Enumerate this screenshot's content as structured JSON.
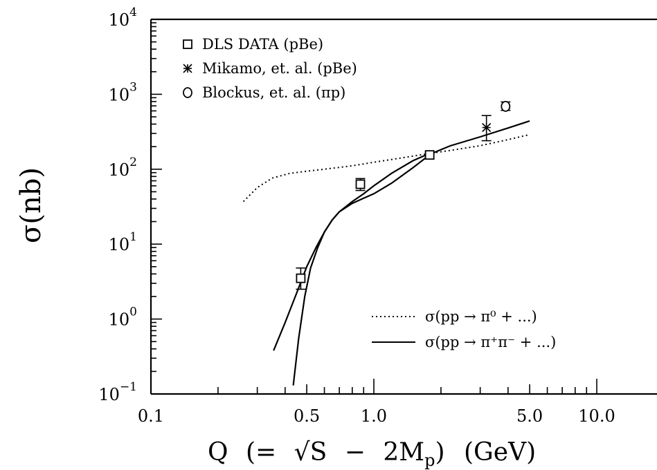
{
  "chart_data": {
    "type": "line",
    "title": "",
    "ylabel": "σ(nb)",
    "xlabel_parts": {
      "q": "Q",
      "open": "(=",
      "sqrt": "√S",
      "minus": "−",
      "two_m": "2M",
      "sub_p": "p",
      "close": ")",
      "unit": "(GeV)"
    },
    "x_scale": "log",
    "y_scale": "log",
    "xlim": [
      0.1,
      20.0
    ],
    "ylim": [
      0.1,
      10000
    ],
    "x_ticks": [
      {
        "value": 0.1,
        "label": "0.1"
      },
      {
        "value": 0.5,
        "label": "0.5"
      },
      {
        "value": 1.0,
        "label": "1.0"
      },
      {
        "value": 5.0,
        "label": "5.0"
      },
      {
        "value": 10.0,
        "label": "10.0"
      }
    ],
    "y_ticks": [
      {
        "value": 0.1,
        "base": "10",
        "exp": "−1"
      },
      {
        "value": 1,
        "base": "10",
        "exp": "0"
      },
      {
        "value": 10,
        "base": "10",
        "exp": "1"
      },
      {
        "value": 100,
        "base": "10",
        "exp": "2"
      },
      {
        "value": 1000,
        "base": "10",
        "exp": "3"
      },
      {
        "value": 10000,
        "base": "10",
        "exp": "4"
      }
    ],
    "markers": [
      {
        "name": "DLS DATA (pBe)",
        "marker": "square",
        "points": [
          {
            "x": 0.47,
            "y": 3.5,
            "y_low": 2.5,
            "y_high": 4.8
          },
          {
            "x": 0.87,
            "y": 63,
            "y_low": 52,
            "y_high": 75
          },
          {
            "x": 1.78,
            "y": 155,
            "y_low": 140,
            "y_high": 170
          }
        ]
      },
      {
        "name": "Mikamo, et. al. (pBe)",
        "marker": "star",
        "points": [
          {
            "x": 3.2,
            "y": 360,
            "y_low": 240,
            "y_high": 520
          }
        ]
      },
      {
        "name": "Blockus, et. al. (πp)",
        "marker": "circle",
        "points": [
          {
            "x": 3.9,
            "y": 690,
            "y_low": 610,
            "y_high": 790
          }
        ]
      }
    ],
    "curves": [
      {
        "name": "σ(pp → π⁰ + ...)",
        "style": "dotted",
        "x": [
          0.26,
          0.3,
          0.35,
          0.42,
          0.5,
          0.6,
          0.8,
          1.0,
          1.3,
          1.7,
          2.2,
          3.0,
          4.0,
          5.0
        ],
        "y": [
          37,
          57,
          76,
          88,
          94,
          100,
          111,
          124,
          140,
          159,
          178,
          206,
          248,
          290
        ]
      },
      {
        "name": "σ(pp → π⁺π⁻ + ...)",
        "style": "solid",
        "x": [
          0.355,
          0.4,
          0.45,
          0.5,
          0.55,
          0.6,
          0.65,
          0.7,
          0.8,
          0.9,
          1.0,
          1.2,
          1.5,
          1.8,
          2.2,
          3.0,
          4.0,
          5.0
        ],
        "y": [
          0.38,
          0.9,
          2.2,
          5.0,
          9.0,
          14.5,
          21,
          27,
          35,
          41,
          47,
          65,
          105,
          160,
          205,
          270,
          355,
          440
        ]
      },
      {
        "name": "",
        "style": "solid",
        "x": [
          0.435,
          0.46,
          0.49,
          0.52,
          0.56,
          0.6,
          0.65,
          0.7,
          0.8,
          0.9,
          1.0,
          1.2,
          1.5,
          1.8
        ],
        "y": [
          0.13,
          0.55,
          2.0,
          4.8,
          9.0,
          14.5,
          21,
          27,
          37,
          47,
          60,
          88,
          130,
          165
        ]
      }
    ],
    "legend_markers": [
      {
        "name": "DLS DATA (pBe)",
        "marker": "square"
      },
      {
        "name": "Mikamo, et. al. (pBe)",
        "marker": "star"
      },
      {
        "name": "Blockus, et. al. (πp)",
        "marker": "circle"
      }
    ],
    "legend_lines": [
      {
        "name": "σ(pp → π⁰ + ...)",
        "style": "dotted"
      },
      {
        "name": "σ(pp → π⁺π⁻ + ...)",
        "style": "solid"
      }
    ],
    "legend_marker_placement": "top-left",
    "legend_line_placement": "bottom-right",
    "grid": false
  }
}
